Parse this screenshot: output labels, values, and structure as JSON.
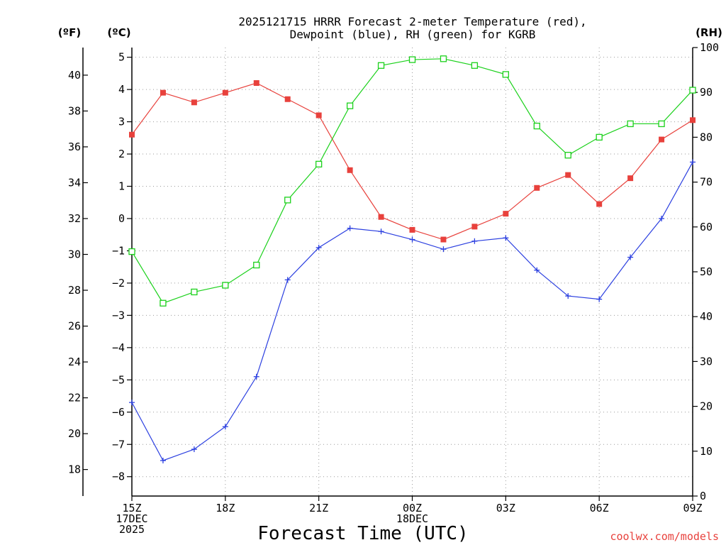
{
  "chart_data": {
    "type": "line",
    "title_line1": "2025121715 HRRR Forecast 2-meter Temperature (red),",
    "title_line2": "Dewpoint (blue), RH (green) for KGRB",
    "xlabel": "Forecast Time (UTC)",
    "credit": "coolwx.com/models",
    "unit_f": "(ºF)",
    "unit_c": "(ºC)",
    "unit_rh": "(RH)",
    "x": [
      "15Z",
      "16Z",
      "17Z",
      "18Z",
      "19Z",
      "20Z",
      "21Z",
      "22Z",
      "23Z",
      "00Z",
      "01Z",
      "02Z",
      "03Z",
      "04Z",
      "05Z",
      "06Z",
      "07Z",
      "08Z",
      "09Z"
    ],
    "x_tick_labels": [
      {
        "index": 0,
        "lines": [
          "15Z",
          "17DEC",
          "2025"
        ]
      },
      {
        "index": 3,
        "lines": [
          "18Z"
        ]
      },
      {
        "index": 6,
        "lines": [
          "21Z"
        ]
      },
      {
        "index": 9,
        "lines": [
          "00Z",
          "18DEC"
        ]
      },
      {
        "index": 12,
        "lines": [
          "03Z"
        ]
      },
      {
        "index": 15,
        "lines": [
          "06Z"
        ]
      },
      {
        "index": 18,
        "lines": [
          "09Z"
        ]
      }
    ],
    "ylim_c": [
      -8.6,
      5.3
    ],
    "ylim_rh": [
      0,
      100
    ],
    "yticks_c": [
      "5",
      "4",
      "3",
      "2",
      "1",
      "0",
      "−1",
      "−2",
      "−3",
      "−4",
      "−5",
      "−6",
      "−7",
      "−8"
    ],
    "yticks_f": [
      "40",
      "38",
      "36",
      "34",
      "32",
      "30",
      "28",
      "26",
      "24",
      "22",
      "20",
      "18"
    ],
    "yticks_rh": [
      "100",
      "90",
      "80",
      "70",
      "60",
      "50",
      "40",
      "30",
      "20",
      "10",
      "0"
    ],
    "grid": true,
    "series": [
      {
        "name": "Temperature",
        "axis": "c",
        "color": "#e8413c",
        "marker": "filled-square",
        "values": [
          2.6,
          3.9,
          3.6,
          3.9,
          4.2,
          3.7,
          3.2,
          1.5,
          0.05,
          -0.35,
          -0.65,
          -0.25,
          0.15,
          0.95,
          1.35,
          0.45,
          1.25,
          2.45,
          3.05
        ]
      },
      {
        "name": "Dewpoint",
        "axis": "c",
        "color": "#2b3fe0",
        "marker": "plus",
        "values": [
          -5.7,
          -7.5,
          -7.15,
          -6.45,
          -4.9,
          -1.9,
          -0.9,
          -0.3,
          -0.4,
          -0.65,
          -0.95,
          -0.7,
          -0.6,
          -1.6,
          -2.4,
          -2.5,
          -1.2,
          0.0,
          1.75
        ]
      },
      {
        "name": "RH",
        "axis": "rh",
        "color": "#1bd11b",
        "marker": "open-square",
        "values": [
          54.5,
          43.0,
          45.5,
          47.0,
          51.5,
          66.0,
          74.0,
          87.0,
          96.0,
          97.3,
          97.5,
          96.0,
          94.0,
          82.5,
          76.0,
          80.0,
          83.0,
          83.0,
          90.5
        ]
      }
    ]
  }
}
